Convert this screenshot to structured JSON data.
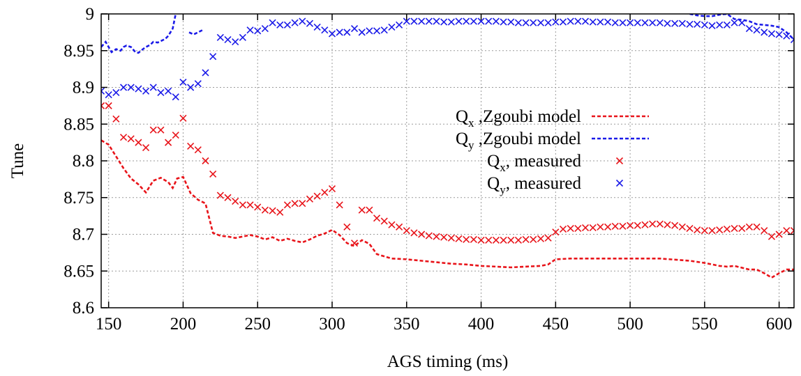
{
  "chart_data": {
    "type": "line",
    "title": "",
    "xlabel": "AGS timing (ms)",
    "ylabel": "Tune",
    "xlim": [
      145,
      610
    ],
    "ylim": [
      8.6,
      9.0
    ],
    "xticks": [
      150,
      200,
      250,
      300,
      350,
      400,
      450,
      500,
      550,
      600
    ],
    "yticks": [
      8.6,
      8.65,
      8.7,
      8.75,
      8.8,
      8.85,
      8.9,
      8.95,
      9.0
    ],
    "xtick_labels": [
      "150",
      "200",
      "250",
      "300",
      "350",
      "400",
      "450",
      "500",
      "550",
      "600"
    ],
    "ytick_labels": [
      "8.6",
      "8.65",
      "8.7",
      "8.75",
      "8.8",
      "8.85",
      "8.9",
      "8.95",
      "9"
    ],
    "grid": true,
    "legend_position": "center-right",
    "legend": [
      {
        "main": "Q",
        "sub": "x",
        "rest": " ,Zgoubi model"
      },
      {
        "main": "Q",
        "sub": "y",
        "rest": " ,Zgoubi model"
      },
      {
        "main": "Q",
        "sub": "x",
        "rest": ", measured"
      },
      {
        "main": "Q",
        "sub": "y",
        "rest": ", measured"
      }
    ],
    "colors": {
      "qx": "#e8141a",
      "qy": "#1a1ae8",
      "grid": "#9a9a9a",
      "axis": "#000000"
    },
    "series": [
      {
        "key": "qx_model",
        "style": "dashed-line",
        "color": "#e8141a",
        "x": [
          145,
          150,
          155,
          160,
          165,
          170,
          175,
          180,
          185,
          190,
          193,
          196,
          200,
          205,
          210,
          215,
          220,
          225,
          230,
          235,
          240,
          245,
          250,
          255,
          260,
          265,
          270,
          275,
          280,
          285,
          290,
          295,
          300,
          305,
          310,
          315,
          320,
          325,
          330,
          340,
          350,
          360,
          370,
          380,
          390,
          400,
          410,
          420,
          430,
          440,
          445,
          450,
          460,
          480,
          500,
          520,
          540,
          550,
          560,
          565,
          570,
          580,
          585,
          590,
          595,
          600,
          605,
          610
        ],
        "y": [
          8.828,
          8.822,
          8.806,
          8.79,
          8.776,
          8.768,
          8.757,
          8.773,
          8.777,
          8.771,
          8.763,
          8.776,
          8.778,
          8.756,
          8.747,
          8.742,
          8.702,
          8.698,
          8.697,
          8.695,
          8.697,
          8.699,
          8.697,
          8.693,
          8.696,
          8.691,
          8.694,
          8.691,
          8.689,
          8.693,
          8.698,
          8.701,
          8.706,
          8.699,
          8.688,
          8.684,
          8.692,
          8.687,
          8.673,
          8.667,
          8.666,
          8.664,
          8.662,
          8.66,
          8.659,
          8.657,
          8.656,
          8.655,
          8.656,
          8.657,
          8.659,
          8.666,
          8.667,
          8.667,
          8.667,
          8.667,
          8.664,
          8.661,
          8.657,
          8.656,
          8.657,
          8.652,
          8.652,
          8.647,
          8.641,
          8.647,
          8.652,
          8.652
        ]
      },
      {
        "key": "qy_model",
        "style": "dashed-line",
        "color": "#1a1ae8",
        "x": [
          145,
          148,
          150,
          152,
          155,
          158,
          160,
          162,
          165,
          168,
          170,
          173,
          175,
          178,
          180,
          183,
          185,
          188,
          190,
          193,
          195,
          null,
          204,
          207,
          210,
          213,
          null,
          540,
          545,
          550,
          555,
          560,
          565,
          570,
          575,
          580,
          585,
          590,
          595,
          600,
          605,
          610
        ],
        "y": [
          8.955,
          8.962,
          8.955,
          8.948,
          8.952,
          8.95,
          8.955,
          8.957,
          8.955,
          8.948,
          8.947,
          8.952,
          8.955,
          8.958,
          8.962,
          8.961,
          8.963,
          8.966,
          8.97,
          8.98,
          9.0,
          null,
          8.975,
          8.972,
          8.975,
          8.978,
          null,
          9.0,
          8.998,
          8.997,
          8.997,
          8.999,
          9.0,
          8.993,
          8.992,
          8.99,
          8.986,
          8.985,
          8.984,
          8.982,
          8.975,
          8.965
        ]
      },
      {
        "key": "qx_measured",
        "style": "cross",
        "color": "#e8141a",
        "x": [
          145,
          150,
          155,
          160,
          165,
          170,
          175,
          180,
          185,
          190,
          195,
          200,
          205,
          210,
          215,
          220,
          225,
          230,
          235,
          240,
          245,
          250,
          255,
          260,
          265,
          270,
          275,
          280,
          285,
          290,
          295,
          300,
          305,
          310,
          315,
          320,
          325,
          330,
          335,
          340,
          345,
          350,
          355,
          360,
          365,
          370,
          375,
          380,
          385,
          390,
          395,
          400,
          405,
          410,
          415,
          420,
          425,
          430,
          435,
          440,
          445,
          450,
          455,
          460,
          465,
          470,
          475,
          480,
          485,
          490,
          495,
          500,
          505,
          510,
          515,
          520,
          525,
          530,
          535,
          540,
          545,
          550,
          555,
          560,
          565,
          570,
          575,
          580,
          585,
          590,
          595,
          600,
          605,
          610
        ],
        "y": [
          8.875,
          8.875,
          8.857,
          8.832,
          8.83,
          8.825,
          8.818,
          8.842,
          8.842,
          8.825,
          8.835,
          8.858,
          8.82,
          8.815,
          8.8,
          8.782,
          8.753,
          8.75,
          8.745,
          8.74,
          8.74,
          8.737,
          8.733,
          8.732,
          8.73,
          8.74,
          8.742,
          8.742,
          8.748,
          8.752,
          8.757,
          8.762,
          8.74,
          8.71,
          8.688,
          8.733,
          8.733,
          8.722,
          8.718,
          8.713,
          8.71,
          8.705,
          8.702,
          8.7,
          8.698,
          8.697,
          8.696,
          8.695,
          8.694,
          8.693,
          8.693,
          8.692,
          8.692,
          8.692,
          8.692,
          8.692,
          8.692,
          8.693,
          8.693,
          8.694,
          8.695,
          8.703,
          8.707,
          8.708,
          8.708,
          8.709,
          8.709,
          8.71,
          8.71,
          8.711,
          8.711,
          8.712,
          8.712,
          8.713,
          8.714,
          8.714,
          8.713,
          8.712,
          8.71,
          8.708,
          8.706,
          8.705,
          8.705,
          8.706,
          8.707,
          8.708,
          8.708,
          8.71,
          8.71,
          8.705,
          8.697,
          8.7,
          8.705,
          8.705
        ]
      },
      {
        "key": "qy_measured",
        "style": "cross",
        "color": "#1a1ae8",
        "x": [
          145,
          150,
          155,
          160,
          165,
          170,
          175,
          180,
          185,
          190,
          195,
          200,
          205,
          210,
          215,
          220,
          225,
          230,
          235,
          240,
          245,
          250,
          255,
          260,
          265,
          270,
          275,
          280,
          285,
          290,
          295,
          300,
          305,
          310,
          315,
          320,
          325,
          330,
          335,
          340,
          345,
          350,
          355,
          360,
          365,
          370,
          375,
          380,
          385,
          390,
          395,
          400,
          405,
          410,
          415,
          420,
          425,
          430,
          435,
          440,
          445,
          450,
          455,
          460,
          465,
          470,
          475,
          480,
          485,
          490,
          495,
          500,
          505,
          510,
          515,
          520,
          525,
          530,
          535,
          540,
          545,
          550,
          555,
          560,
          565,
          570,
          575,
          580,
          585,
          590,
          595,
          600,
          605,
          610
        ],
        "y": [
          8.895,
          8.89,
          8.893,
          8.9,
          8.9,
          8.898,
          8.895,
          8.9,
          8.893,
          8.895,
          8.887,
          8.907,
          8.9,
          8.905,
          8.92,
          8.942,
          8.968,
          8.965,
          8.962,
          8.968,
          8.978,
          8.977,
          8.98,
          8.988,
          8.985,
          8.985,
          8.988,
          8.99,
          8.987,
          8.982,
          8.978,
          8.973,
          8.975,
          8.975,
          8.98,
          8.975,
          8.977,
          8.977,
          8.978,
          8.982,
          8.985,
          8.99,
          8.99,
          8.99,
          8.99,
          8.99,
          8.989,
          8.989,
          8.99,
          8.99,
          8.99,
          8.99,
          8.99,
          8.99,
          8.989,
          8.989,
          8.988,
          8.988,
          8.988,
          8.988,
          8.988,
          8.989,
          8.989,
          8.99,
          8.99,
          8.99,
          8.989,
          8.989,
          8.989,
          8.988,
          8.988,
          8.988,
          8.988,
          8.988,
          8.988,
          8.988,
          8.987,
          8.987,
          8.987,
          8.986,
          8.986,
          8.985,
          8.984,
          8.985,
          8.985,
          8.988,
          8.988,
          8.98,
          8.978,
          8.975,
          8.973,
          8.972,
          8.97,
          8.965
        ]
      }
    ]
  }
}
